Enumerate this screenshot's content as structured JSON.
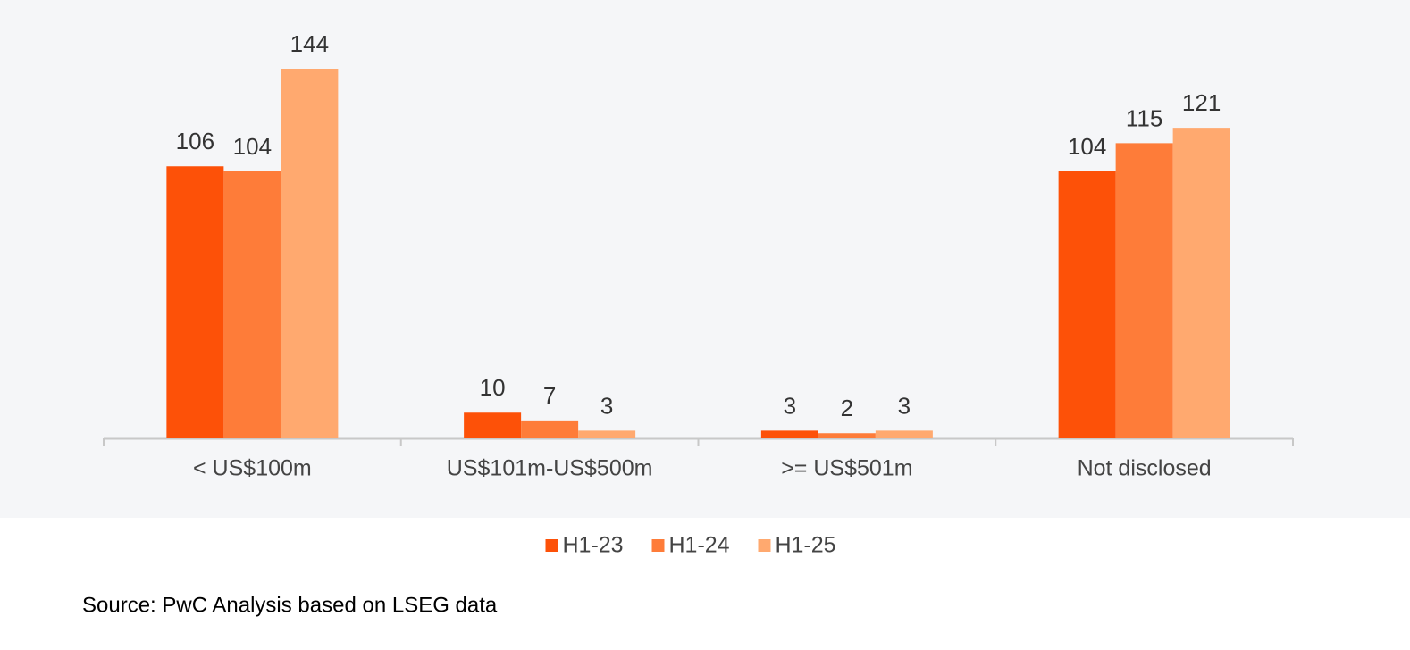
{
  "chart_data": {
    "type": "bar",
    "categories": [
      "< US$100m",
      "US$101m-US$500m",
      ">= US$501m",
      "Not disclosed"
    ],
    "series": [
      {
        "name": "H1-23",
        "color": "#fd5108",
        "values": [
          106,
          10,
          3,
          104
        ]
      },
      {
        "name": "H1-24",
        "color": "#fe7c39",
        "values": [
          104,
          7,
          2,
          115
        ]
      },
      {
        "name": "H1-25",
        "color": "#ffa96f",
        "values": [
          144,
          3,
          3,
          121
        ]
      }
    ],
    "legend": "bottom",
    "source": "Source: PwC Analysis based on LSEG data"
  }
}
